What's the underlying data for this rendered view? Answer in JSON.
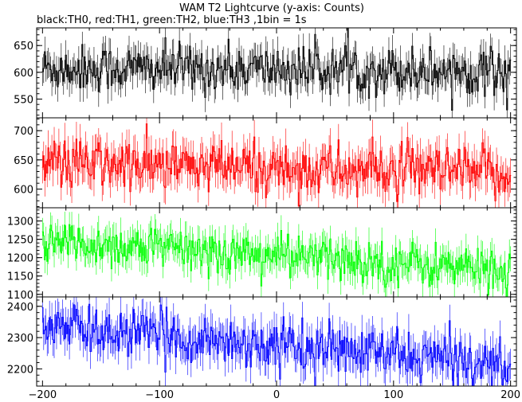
{
  "title": "WAM T2 Lightcurve (y-axis: Counts)",
  "subtitle": "black:TH0, red:TH1, green:TH2, blue:TH3 ,1bin = 1s",
  "chart_data": {
    "type": "line",
    "title": "WAM T2 Lightcurve (y-axis: Counts)",
    "subtitle": "black:TH0, red:TH1, green:TH2, blue:TH3 ,1bin = 1s",
    "xlabel": "",
    "ylabel": "",
    "bin_seconds": 1,
    "x_range": [
      -200,
      200
    ],
    "xlim": [
      -205,
      205
    ],
    "x_ticks": [
      -200,
      -100,
      0,
      100,
      200
    ],
    "x_tick_labels": [
      "−200",
      "−100",
      "0",
      "100",
      "200"
    ],
    "grid": false,
    "panels": [
      {
        "series": "TH0",
        "color": "#000000",
        "ylim": [
          515,
          683
        ],
        "y_ticks": [
          550,
          600,
          650
        ],
        "y_tick_labels": [
          "550",
          "600",
          "650"
        ],
        "level_start": 608,
        "level_end": 603,
        "noise_sd": 22
      },
      {
        "series": "TH1",
        "color": "#ff0000",
        "ylim": [
          568,
          722
        ],
        "y_ticks": [
          600,
          650,
          700
        ],
        "y_tick_labels": [
          "600",
          "650",
          "700"
        ],
        "level_start": 644,
        "level_end": 625,
        "noise_sd": 22
      },
      {
        "series": "TH2",
        "color": "#00ff00",
        "ylim": [
          1093,
          1336
        ],
        "y_ticks": [
          1100,
          1150,
          1200,
          1250,
          1300
        ],
        "y_tick_labels": [
          "1100",
          "1150",
          "1200",
          "1250",
          "1300"
        ],
        "level_start": 1245,
        "level_end": 1165,
        "noise_sd": 30
      },
      {
        "series": "TH3",
        "color": "#0000ff",
        "ylim": [
          2145,
          2430
        ],
        "y_ticks": [
          2200,
          2300,
          2400
        ],
        "y_tick_labels": [
          "2200",
          "2300",
          "2400"
        ],
        "level_start": 2335,
        "level_end": 2215,
        "noise_sd": 38
      }
    ]
  }
}
